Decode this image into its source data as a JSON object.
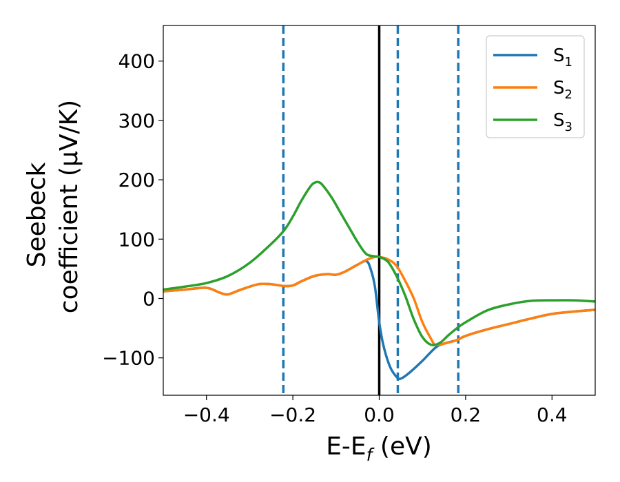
{
  "chart_data": {
    "type": "line",
    "xlabel": "E-E$_f$ (eV)",
    "xlabel_main": "E-E",
    "xlabel_sub": "f",
    "xlabel_tail": " (eV)",
    "ylabel_line1": "Seebeck",
    "ylabel_line2": "coefficient  (μV/K)",
    "xlim": [
      -0.5,
      0.5
    ],
    "ylim": [
      -163,
      460
    ],
    "xticks": [
      -0.4,
      -0.2,
      0.0,
      0.2,
      0.4
    ],
    "xtick_labels": [
      "−0.4",
      "−0.2",
      "0.0",
      "0.2",
      "0.4"
    ],
    "yticks": [
      -100,
      0,
      100,
      200,
      300,
      400
    ],
    "ytick_labels": [
      "−100",
      "0",
      "100",
      "200",
      "300",
      "400"
    ],
    "grid": false,
    "legend_position": "top-right",
    "vertical_lines": [
      {
        "x": -0.222,
        "style": "dashed",
        "color": "#1f77b4"
      },
      {
        "x": 0.0,
        "style": "solid",
        "color": "#000000"
      },
      {
        "x": 0.043,
        "style": "dashed",
        "color": "#1f77b4"
      },
      {
        "x": 0.183,
        "style": "dashed",
        "color": "#1f77b4"
      }
    ],
    "series": [
      {
        "name": "S1",
        "label_main": "S",
        "label_sub": "1",
        "color": "#1f77b4",
        "points": [
          [
            -0.5,
            12
          ],
          [
            -0.45,
            15
          ],
          [
            -0.4,
            18
          ],
          [
            -0.37,
            10
          ],
          [
            -0.35,
            7
          ],
          [
            -0.32,
            15
          ],
          [
            -0.28,
            24
          ],
          [
            -0.25,
            24
          ],
          [
            -0.22,
            21
          ],
          [
            -0.2,
            22
          ],
          [
            -0.18,
            29
          ],
          [
            -0.15,
            38
          ],
          [
            -0.12,
            41
          ],
          [
            -0.1,
            40
          ],
          [
            -0.08,
            45
          ],
          [
            -0.05,
            57
          ],
          [
            -0.03,
            63
          ],
          [
            -0.02,
            50
          ],
          [
            -0.01,
            20
          ],
          [
            0.0,
            -40
          ],
          [
            0.01,
            -80
          ],
          [
            0.025,
            -115
          ],
          [
            0.04,
            -132
          ],
          [
            0.05,
            -135
          ],
          [
            0.07,
            -125
          ],
          [
            0.1,
            -105
          ],
          [
            0.13,
            -83
          ],
          [
            0.15,
            -76
          ],
          [
            0.18,
            -70
          ],
          [
            0.2,
            -63
          ],
          [
            0.25,
            -52
          ],
          [
            0.3,
            -43
          ],
          [
            0.35,
            -34
          ],
          [
            0.4,
            -26
          ],
          [
            0.45,
            -22
          ],
          [
            0.5,
            -19
          ]
        ]
      },
      {
        "name": "S2",
        "label_main": "S",
        "label_sub": "2",
        "color": "#ff7f0e",
        "points": [
          [
            -0.5,
            12
          ],
          [
            -0.45,
            15
          ],
          [
            -0.4,
            18
          ],
          [
            -0.37,
            10
          ],
          [
            -0.35,
            7
          ],
          [
            -0.32,
            15
          ],
          [
            -0.28,
            24
          ],
          [
            -0.25,
            24
          ],
          [
            -0.22,
            21
          ],
          [
            -0.2,
            22
          ],
          [
            -0.18,
            29
          ],
          [
            -0.15,
            38
          ],
          [
            -0.12,
            41
          ],
          [
            -0.1,
            40
          ],
          [
            -0.08,
            45
          ],
          [
            -0.05,
            57
          ],
          [
            -0.03,
            65
          ],
          [
            -0.01,
            70
          ],
          [
            0.0,
            70
          ],
          [
            0.02,
            66
          ],
          [
            0.04,
            55
          ],
          [
            0.06,
            30
          ],
          [
            0.08,
            0
          ],
          [
            0.1,
            -40
          ],
          [
            0.12,
            -68
          ],
          [
            0.13,
            -78
          ],
          [
            0.15,
            -76
          ],
          [
            0.18,
            -70
          ],
          [
            0.2,
            -63
          ],
          [
            0.25,
            -52
          ],
          [
            0.3,
            -43
          ],
          [
            0.35,
            -34
          ],
          [
            0.4,
            -26
          ],
          [
            0.45,
            -22
          ],
          [
            0.5,
            -19
          ]
        ]
      },
      {
        "name": "S3",
        "label_main": "S",
        "label_sub": "3",
        "color": "#2ca02c",
        "points": [
          [
            -0.5,
            15
          ],
          [
            -0.45,
            20
          ],
          [
            -0.4,
            26
          ],
          [
            -0.35,
            38
          ],
          [
            -0.3,
            60
          ],
          [
            -0.25,
            92
          ],
          [
            -0.22,
            115
          ],
          [
            -0.2,
            138
          ],
          [
            -0.18,
            165
          ],
          [
            -0.16,
            188
          ],
          [
            -0.15,
            195
          ],
          [
            -0.14,
            196
          ],
          [
            -0.13,
            190
          ],
          [
            -0.11,
            170
          ],
          [
            -0.09,
            145
          ],
          [
            -0.07,
            120
          ],
          [
            -0.05,
            95
          ],
          [
            -0.03,
            75
          ],
          [
            -0.01,
            71
          ],
          [
            0.0,
            70
          ],
          [
            0.02,
            62
          ],
          [
            0.04,
            38
          ],
          [
            0.06,
            5
          ],
          [
            0.08,
            -35
          ],
          [
            0.1,
            -65
          ],
          [
            0.12,
            -78
          ],
          [
            0.14,
            -75
          ],
          [
            0.16,
            -62
          ],
          [
            0.18,
            -50
          ],
          [
            0.2,
            -40
          ],
          [
            0.25,
            -20
          ],
          [
            0.3,
            -10
          ],
          [
            0.35,
            -4
          ],
          [
            0.4,
            -3
          ],
          [
            0.45,
            -3
          ],
          [
            0.5,
            -5
          ]
        ]
      }
    ]
  }
}
